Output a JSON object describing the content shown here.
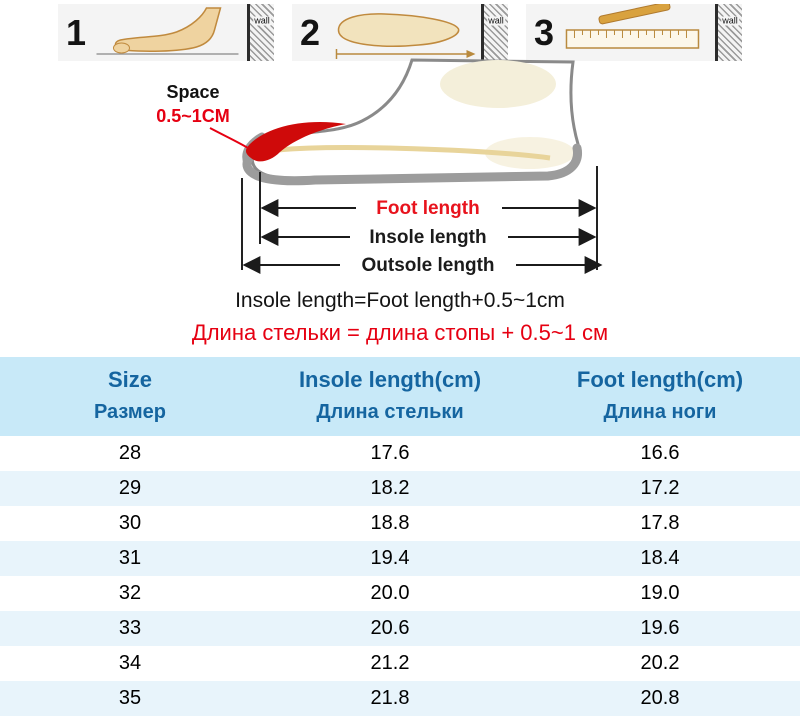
{
  "steps": [
    {
      "number": "1",
      "wall_label": "wall"
    },
    {
      "number": "2",
      "wall_label": "wall"
    },
    {
      "number": "3",
      "wall_label": "wall"
    }
  ],
  "diagram": {
    "space_label": "Space",
    "space_value": "0.5~1CM",
    "foot_length_label": "Foot length",
    "insole_length_label": "Insole length",
    "outsole_length_label": "Outsole length"
  },
  "formulas": {
    "en": "Insole length=Foot length+0.5~1cm",
    "ru": "Длина стельки = длина стопы + 0.5~1 см"
  },
  "table": {
    "headers": {
      "size_en": "Size",
      "size_ru": "Размер",
      "insole_en": "Insole length(cm)",
      "insole_ru": "Длина стельки",
      "foot_en": "Foot length(cm)",
      "foot_ru": "Длина ноги"
    },
    "rows": [
      [
        "28",
        "17.6",
        "16.6"
      ],
      [
        "29",
        "18.2",
        "17.2"
      ],
      [
        "30",
        "18.8",
        "17.8"
      ],
      [
        "31",
        "19.4",
        "18.4"
      ],
      [
        "32",
        "20.0",
        "19.0"
      ],
      [
        "33",
        "20.6",
        "19.6"
      ],
      [
        "34",
        "21.2",
        "20.2"
      ],
      [
        "35",
        "21.8",
        "20.8"
      ]
    ]
  },
  "colors": {
    "accent_red": "#e60012",
    "header_text_blue": "#1565a0",
    "header_bg_blue": "#c8e9f8",
    "row_alt_bg": "#e8f4fb",
    "shoe_gray": "#9c9c9c"
  },
  "chart_data": {
    "type": "table",
    "columns": [
      "Size / Размер",
      "Insole length (cm) / Длина стельки",
      "Foot length (cm) / Длина ноги"
    ],
    "rows": [
      [
        28,
        17.6,
        16.6
      ],
      [
        29,
        18.2,
        17.2
      ],
      [
        30,
        18.8,
        17.8
      ],
      [
        31,
        19.4,
        18.4
      ],
      [
        32,
        20.0,
        19.0
      ],
      [
        33,
        20.6,
        19.6
      ],
      [
        34,
        21.2,
        20.2
      ],
      [
        35,
        21.8,
        20.8
      ]
    ],
    "notes": [
      "Insole length = Foot length + 0.5~1 cm",
      "Длина стельки = длина стопы + 0.5~1 см"
    ]
  }
}
